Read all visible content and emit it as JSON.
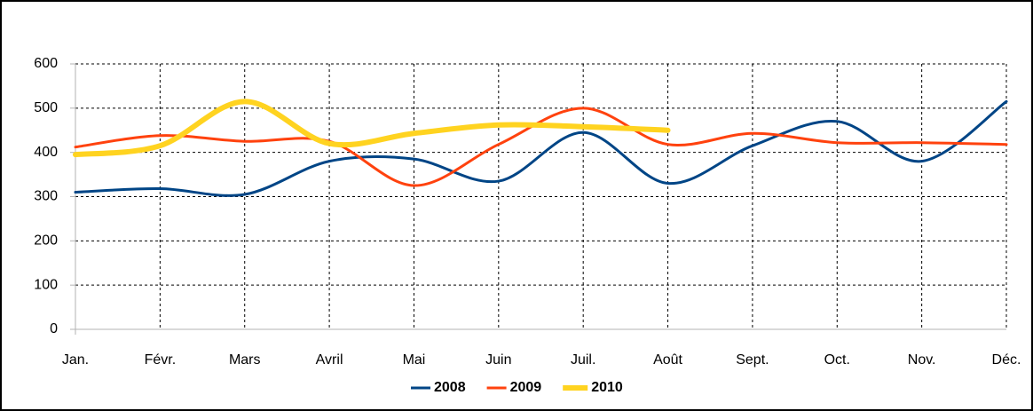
{
  "chart_data": {
    "type": "line",
    "smooth": true,
    "grid": true,
    "legend": "bottom",
    "categories": [
      "Jan.",
      "Févr.",
      "Mars",
      "Avril",
      "Mai",
      "Juin",
      "Juil.",
      "Août",
      "Sept.",
      "Oct.",
      "Nov.",
      "Déc."
    ],
    "series": [
      {
        "name": "2008",
        "color": "#004586",
        "values": [
          310,
          318,
          305,
          380,
          385,
          335,
          445,
          330,
          415,
          470,
          380,
          515
        ]
      },
      {
        "name": "2009",
        "color": "#ff420e",
        "values": [
          412,
          438,
          425,
          425,
          325,
          418,
          500,
          418,
          443,
          422,
          422,
          418
        ]
      },
      {
        "name": "2010",
        "color": "#ffd320",
        "values": [
          395,
          415,
          515,
          420,
          443,
          462,
          458,
          450,
          null,
          null,
          null,
          null
        ]
      }
    ],
    "ylim": [
      0,
      600
    ],
    "yticks": [
      0,
      100,
      200,
      300,
      400,
      500,
      600
    ]
  }
}
